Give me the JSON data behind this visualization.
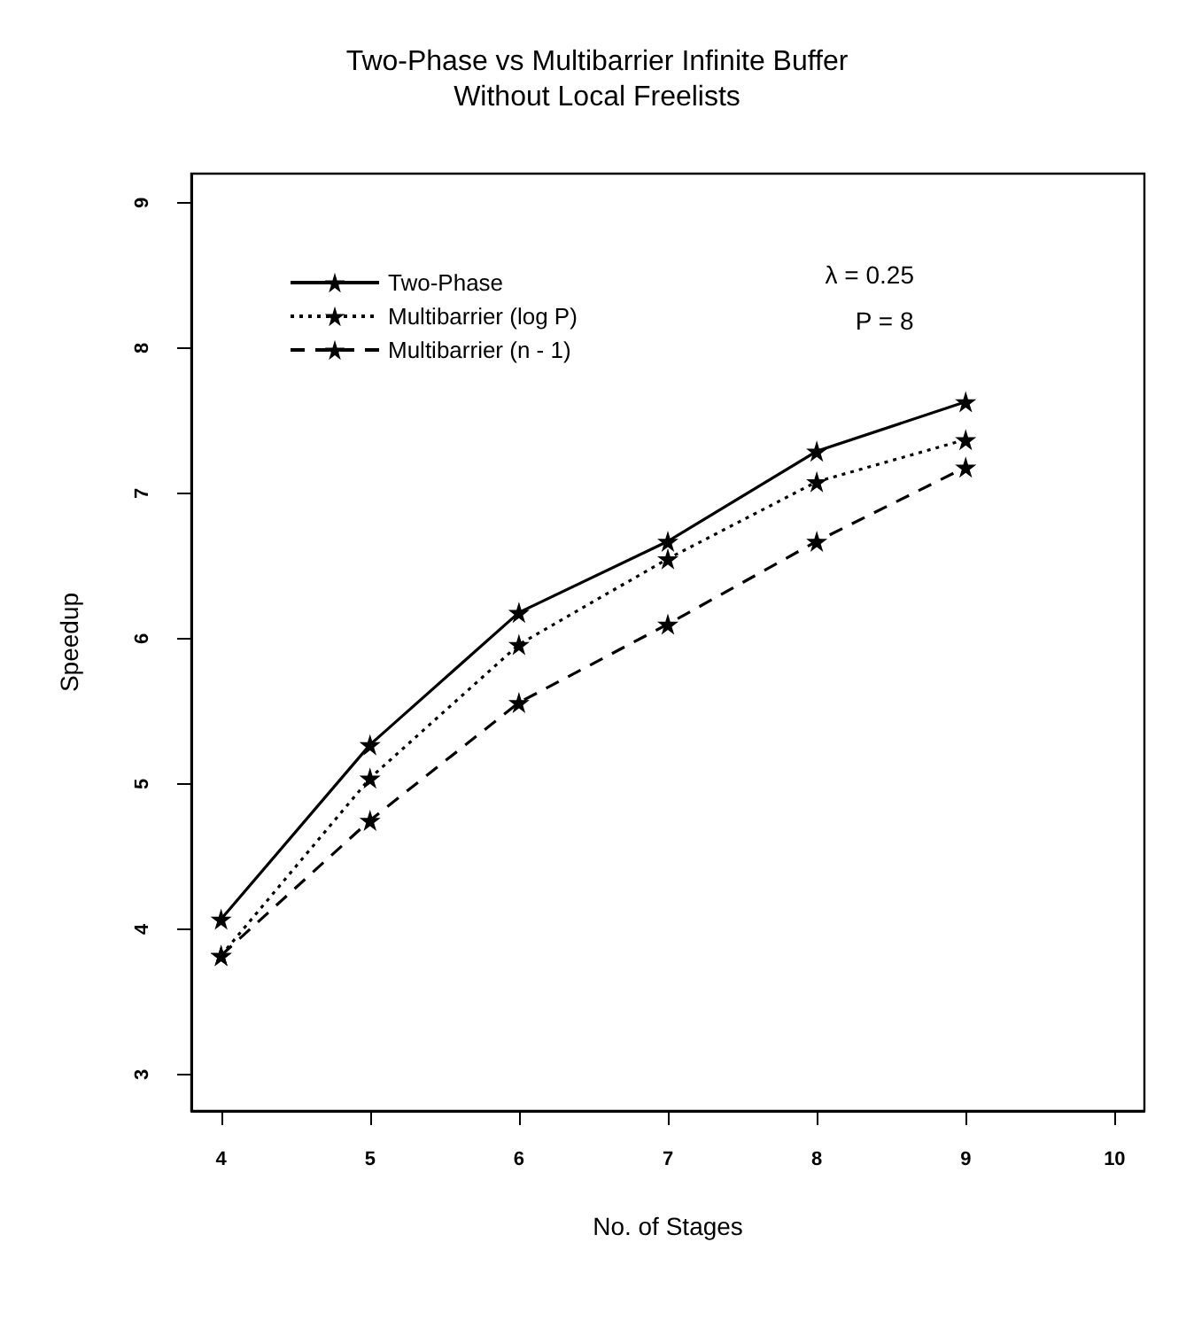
{
  "chart_data": {
    "type": "line",
    "title": "Two-Phase vs Multibarrier Infinite Buffer\nWithout Local Freelists",
    "xlabel": "No. of Stages",
    "ylabel": "Speedup",
    "x": [
      4,
      5,
      6,
      7,
      8,
      9
    ],
    "series": [
      {
        "name": "Two-Phase",
        "color": "#000000",
        "line_style": "solid",
        "values": [
          4.07,
          5.27,
          6.18,
          6.67,
          7.29,
          7.63
        ]
      },
      {
        "name": "Multibarrier (log P)",
        "color": "#000000",
        "line_style": "dotted",
        "values": [
          3.82,
          5.04,
          5.96,
          6.55,
          7.08,
          7.37
        ]
      },
      {
        "name": "Multibarrier (n - 1)",
        "color": "#000000",
        "line_style": "dashed",
        "values": [
          3.82,
          4.75,
          5.56,
          6.1,
          6.67,
          7.18
        ]
      }
    ],
    "xlim": [
      3.8,
      10.2
    ],
    "xticks": [
      4,
      5,
      6,
      7,
      8,
      9,
      10
    ],
    "ylim": [
      2.75,
      9.2
    ],
    "yticks": [
      3,
      4,
      5,
      6,
      7,
      8,
      9
    ],
    "annotations": [
      "λ = 0.25",
      "P = 8"
    ],
    "marker": "star",
    "grid": false,
    "legend": "top left"
  }
}
